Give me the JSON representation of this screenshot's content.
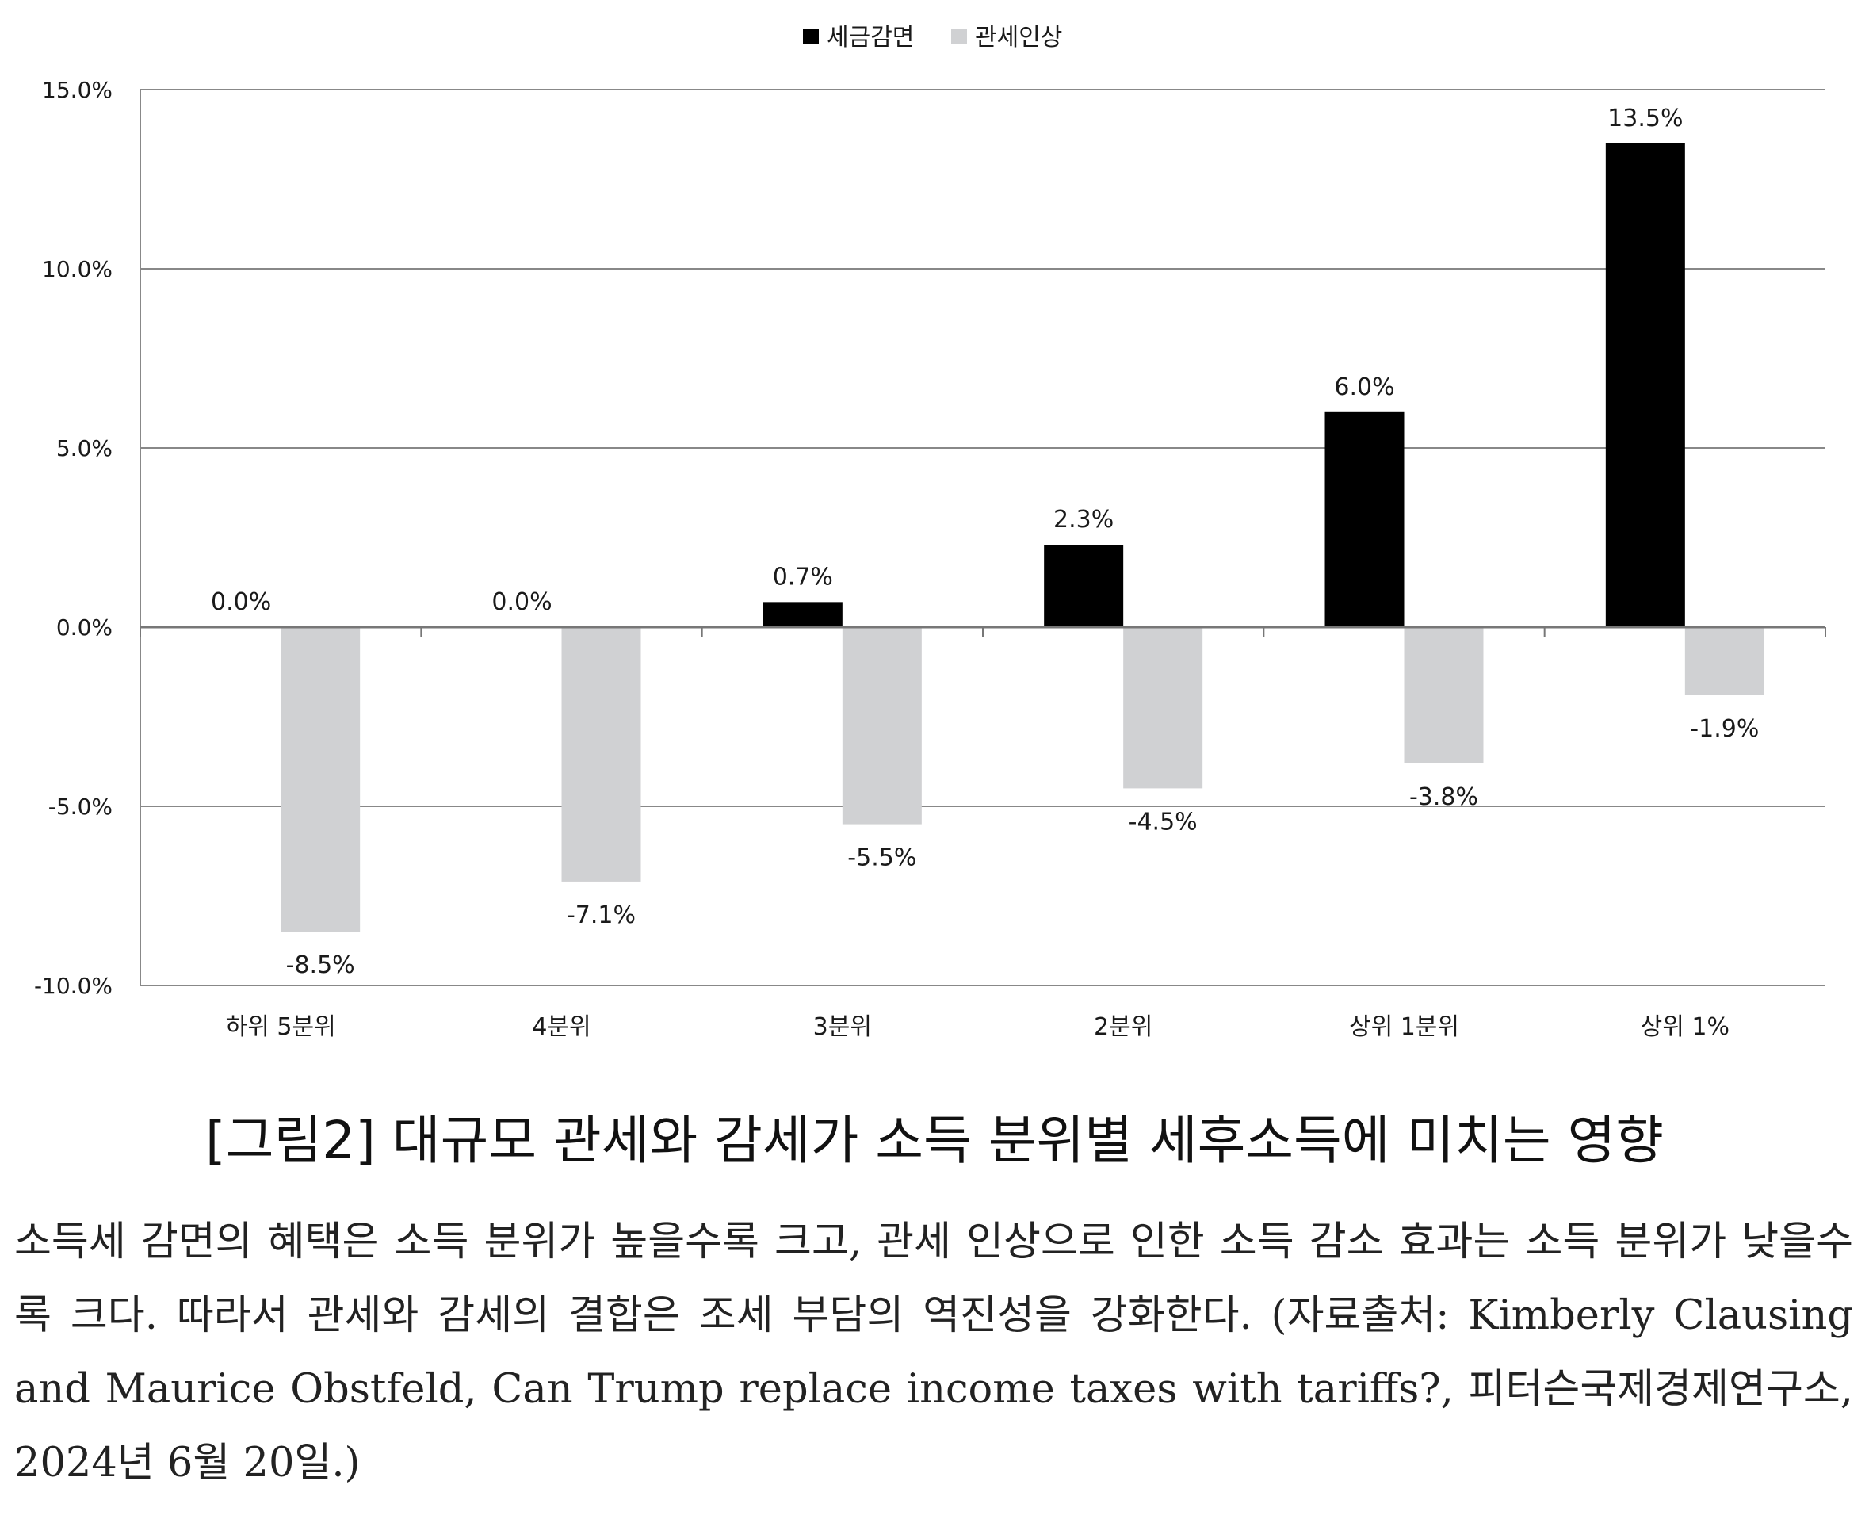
{
  "chart_data": {
    "type": "bar",
    "title": "",
    "xlabel": "",
    "ylabel": "",
    "categories": [
      "하위 5분위",
      "4분위",
      "3분위",
      "2분위",
      "상위 1분위",
      "상위 1%"
    ],
    "series": [
      {
        "name": "세금감면",
        "color": "#000000",
        "values": [
          0.0,
          0.0,
          0.7,
          2.3,
          6.0,
          13.5
        ],
        "labels": [
          "0.0%",
          "0.0%",
          "0.7%",
          "2.3%",
          "6.0%",
          "13.5%"
        ]
      },
      {
        "name": "관세인상",
        "color": "#d0d1d3",
        "values": [
          -8.5,
          -7.1,
          -5.5,
          -4.5,
          -3.8,
          -1.9
        ],
        "labels": [
          "-8.5%",
          "-7.1%",
          "-5.5%",
          "-4.5%",
          "-3.8%",
          "-1.9%"
        ]
      }
    ],
    "ylim": [
      -10,
      15
    ],
    "yticks": [
      15,
      10,
      5,
      0,
      -5,
      -10
    ],
    "ytick_labels": [
      "15.0%",
      "10.0%",
      "5.0%",
      "0.0%",
      "-5.0%",
      "-10.0%"
    ],
    "grid": true,
    "legend_position": "top-center"
  },
  "caption": {
    "title": "[그림2] 대규모 관세와 감세가 소득 분위별 세후소득에 미치는 영향",
    "body": "소득세 감면의 혜택은 소득 분위가 높을수록 크고, 관세 인상으로 인한 소득 감소 효과는 소득 분위가 낮을수록 크다. 따라서 관세와 감세의 결합은 조세 부담의 역진성을 강화한다. (자료출처: Kimberly Clausing and Maurice Obstfeld, Can Trump replace income taxes with tariffs?, 피터슨국제경제연구소, 2024년 6월 20일.)"
  }
}
